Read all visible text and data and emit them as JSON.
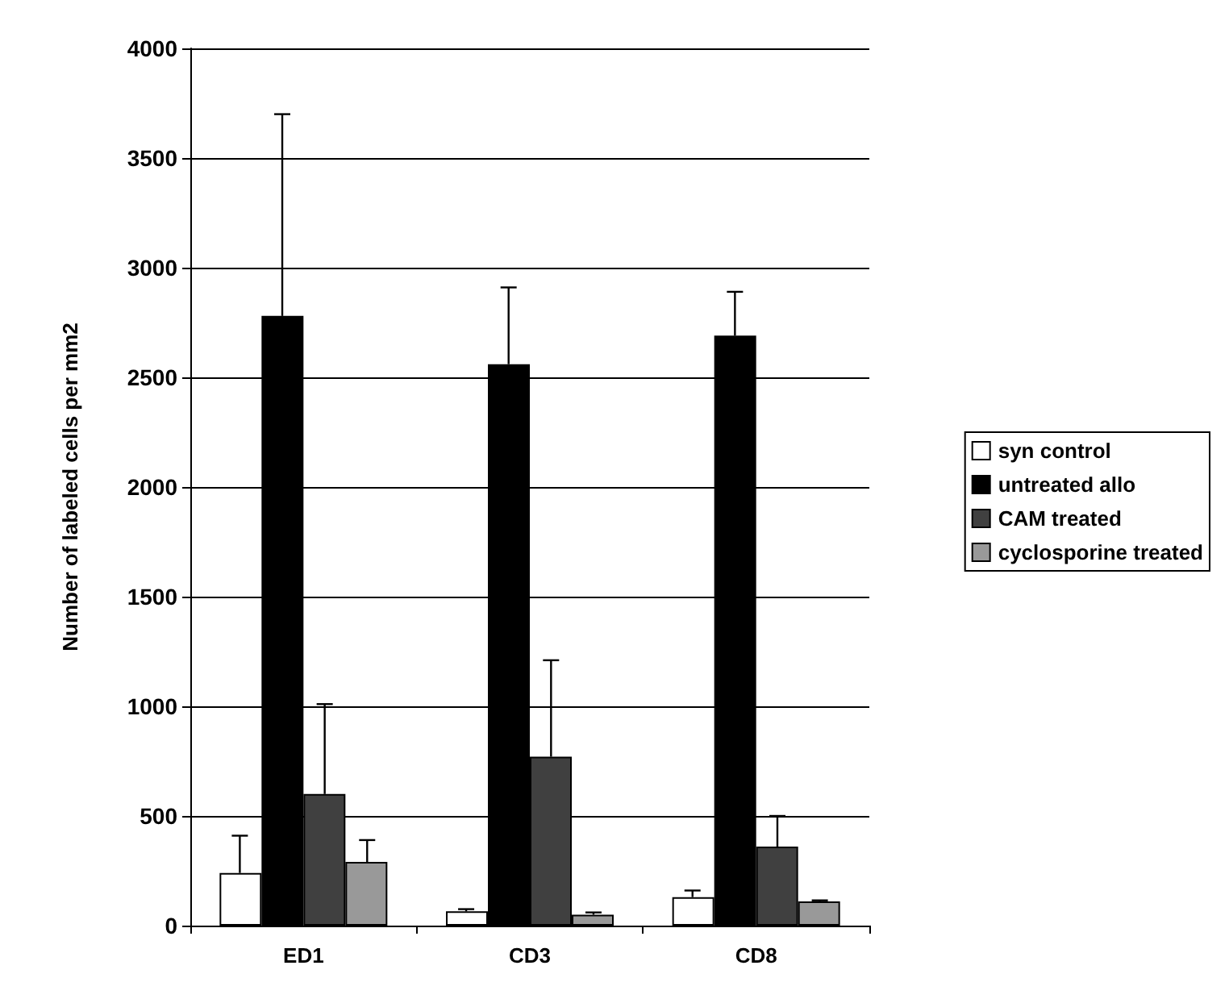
{
  "chart_data": {
    "type": "bar",
    "ylabel": "Number of labeled cells per mm2",
    "categories": [
      "ED1",
      "CD3",
      "CD8"
    ],
    "series": [
      {
        "name": "syn control",
        "color": "#ffffff",
        "values": [
          240,
          65,
          130
        ],
        "errors": [
          [
            240,
            410
          ],
          [
            65,
            75
          ],
          [
            130,
            160
          ]
        ]
      },
      {
        "name": "untreated allo",
        "color": "#000000",
        "values": [
          2780,
          2560,
          2690
        ],
        "errors": [
          [
            2780,
            3700
          ],
          [
            2560,
            2910
          ],
          [
            2690,
            2890
          ]
        ]
      },
      {
        "name": "CAM treated",
        "color": "#404040",
        "values": [
          600,
          770,
          360
        ],
        "errors": [
          [
            600,
            1010
          ],
          [
            770,
            1210
          ],
          [
            360,
            500
          ]
        ]
      },
      {
        "name": "cyclosporine treated",
        "color": "#999999",
        "values": [
          290,
          50,
          110
        ],
        "errors": [
          [
            290,
            390
          ],
          [
            50,
            60
          ],
          [
            110,
            115
          ]
        ]
      }
    ],
    "ylim": [
      0,
      4000
    ],
    "yticks": [
      0,
      500,
      1000,
      1500,
      2000,
      2500,
      3000,
      3500,
      4000
    ],
    "grid": "y",
    "legend": "right"
  }
}
